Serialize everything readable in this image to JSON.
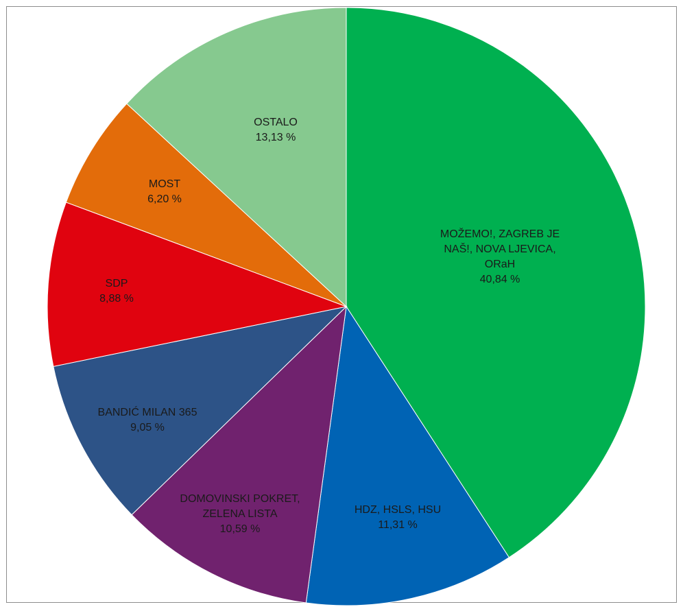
{
  "chart_data": {
    "type": "pie",
    "start_angle_deg": 0,
    "direction": "clockwise",
    "slices": [
      {
        "name": "MOŽEMO!, ZAGREB JE NAŠ!, NOVA LJEVICA, ORaH",
        "label_lines": [
          "MOŽEMO!, ZAGREB JE",
          "NAŠ!, NOVA LJEVICA,",
          "ORaH"
        ],
        "value": 40.84,
        "value_label": "40,84 %",
        "color": "#00b050"
      },
      {
        "name": "HDZ, HSLS, HSU",
        "label_lines": [
          "HDZ, HSLS, HSU"
        ],
        "value": 11.31,
        "value_label": "11,31 %",
        "color": "#0063b4"
      },
      {
        "name": "DOMOVINSKI POKRET, ZELENA LISTA",
        "label_lines": [
          "DOMOVINSKI POKRET,",
          "ZELENA LISTA"
        ],
        "value": 10.59,
        "value_label": "10,59 %",
        "color": "#70226e"
      },
      {
        "name": "BANDIĆ MILAN 365",
        "label_lines": [
          "BANDIĆ MILAN 365"
        ],
        "value": 9.05,
        "value_label": "9,05 %",
        "color": "#2d5387"
      },
      {
        "name": "SDP",
        "label_lines": [
          "SDP"
        ],
        "value": 8.88,
        "value_label": "8,88 %",
        "color": "#e0030f"
      },
      {
        "name": "MOST",
        "label_lines": [
          "MOST"
        ],
        "value": 6.2,
        "value_label": "6,20 %",
        "color": "#e36c0a"
      },
      {
        "name": "OSTALO",
        "label_lines": [
          "OSTALO"
        ],
        "value": 13.13,
        "value_label": "13,13 %",
        "color": "#86c98f"
      }
    ]
  }
}
